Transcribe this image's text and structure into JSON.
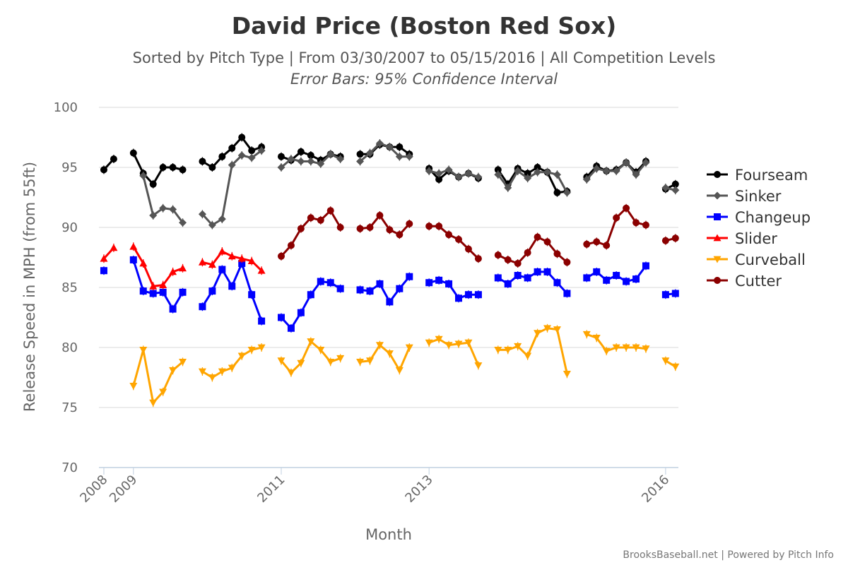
{
  "chart_data": {
    "type": "line",
    "title": "David Price (Boston Red Sox)",
    "subtitle": "Sorted by Pitch Type | From 03/30/2007 to 05/15/2016 | All Competition Levels",
    "subtitle2": "Error Bars: 95% Confidence Interval",
    "xlabel": "Month",
    "ylabel": "Release Speed in MPH (from 55ft)",
    "ylim": [
      70,
      100
    ],
    "yticks": [
      70,
      75,
      80,
      85,
      90,
      95,
      100
    ],
    "xticks": [
      {
        "label": "2008",
        "x": 0
      },
      {
        "label": "2009",
        "x": 3
      },
      {
        "label": "2011",
        "x": 18
      },
      {
        "label": "2013",
        "x": 33
      },
      {
        "label": "2016",
        "x": 57
      }
    ],
    "xlim": [
      -0.5,
      58.3
    ],
    "grid": true,
    "legend_position": "right",
    "credit": "BrooksBaseball.net | Powered by Pitch Info",
    "series": [
      {
        "name": "Fourseam",
        "color": "#000000",
        "marker": "circle",
        "stroke": "#000000",
        "segments": [
          [
            [
              0,
              94.8
            ],
            [
              1,
              95.7
            ]
          ],
          [
            [
              3,
              96.2
            ],
            [
              4,
              94.5
            ],
            [
              5,
              93.6
            ],
            [
              6,
              95.0
            ],
            [
              7,
              95.0
            ],
            [
              8,
              94.8
            ]
          ],
          [
            [
              10,
              95.5
            ],
            [
              11,
              95.0
            ],
            [
              12,
              95.9
            ],
            [
              13,
              96.6
            ],
            [
              14,
              97.5
            ],
            [
              15,
              96.4
            ],
            [
              16,
              96.7
            ]
          ],
          [
            [
              18,
              95.9
            ],
            [
              19,
              95.6
            ],
            [
              20,
              96.3
            ],
            [
              21,
              96.0
            ],
            [
              22,
              95.6
            ],
            [
              23,
              96.1
            ],
            [
              24,
              95.9
            ]
          ],
          [
            [
              26,
              96.1
            ],
            [
              27,
              96.1
            ],
            [
              28,
              96.9
            ],
            [
              29,
              96.7
            ],
            [
              30,
              96.7
            ],
            [
              31,
              96.1
            ]
          ],
          [
            [
              33,
              94.9
            ],
            [
              34,
              94.0
            ],
            [
              35,
              94.7
            ],
            [
              36,
              94.2
            ],
            [
              37,
              94.5
            ],
            [
              38,
              94.1
            ]
          ],
          [
            [
              40,
              94.8
            ],
            [
              41,
              93.6
            ],
            [
              42,
              94.9
            ],
            [
              43,
              94.5
            ],
            [
              44,
              95.0
            ],
            [
              45,
              94.6
            ],
            [
              46,
              92.9
            ],
            [
              47,
              93.0
            ]
          ],
          [
            [
              49,
              94.2
            ],
            [
              50,
              95.1
            ],
            [
              51,
              94.7
            ],
            [
              52,
              94.8
            ],
            [
              53,
              95.4
            ],
            [
              54,
              94.6
            ],
            [
              55,
              95.5
            ]
          ],
          [
            [
              57,
              93.2
            ],
            [
              58,
              93.6
            ]
          ]
        ]
      },
      {
        "name": "Sinker",
        "color": "#555555",
        "marker": "diamond",
        "stroke": "#555555",
        "segments": [
          [
            [
              4,
              94.3
            ],
            [
              5,
              91.0
            ],
            [
              6,
              91.6
            ],
            [
              7,
              91.5
            ],
            [
              8,
              90.4
            ]
          ],
          [
            [
              10,
              91.1
            ],
            [
              11,
              90.2
            ],
            [
              12,
              90.7
            ],
            [
              13,
              95.2
            ],
            [
              14,
              96.0
            ],
            [
              15,
              95.8
            ],
            [
              16,
              96.4
            ]
          ],
          [
            [
              18,
              95.0
            ],
            [
              19,
              95.7
            ],
            [
              20,
              95.5
            ],
            [
              21,
              95.5
            ],
            [
              22,
              95.3
            ],
            [
              23,
              96.1
            ],
            [
              24,
              95.7
            ]
          ],
          [
            [
              26,
              95.5
            ],
            [
              27,
              96.2
            ],
            [
              28,
              97.0
            ],
            [
              29,
              96.7
            ],
            [
              30,
              95.9
            ],
            [
              31,
              95.9
            ]
          ],
          [
            [
              33,
              94.7
            ],
            [
              34,
              94.5
            ],
            [
              35,
              94.8
            ],
            [
              36,
              94.2
            ],
            [
              37,
              94.5
            ],
            [
              38,
              94.2
            ]
          ],
          [
            [
              40,
              94.4
            ],
            [
              41,
              93.3
            ],
            [
              42,
              94.7
            ],
            [
              43,
              94.1
            ],
            [
              44,
              94.6
            ],
            [
              45,
              94.6
            ],
            [
              46,
              94.4
            ],
            [
              47,
              92.9
            ]
          ],
          [
            [
              49,
              94.0
            ],
            [
              50,
              94.9
            ],
            [
              51,
              94.7
            ],
            [
              52,
              94.7
            ],
            [
              53,
              95.4
            ],
            [
              54,
              94.4
            ],
            [
              55,
              95.4
            ]
          ],
          [
            [
              57,
              93.3
            ],
            [
              58,
              93.1
            ]
          ]
        ]
      },
      {
        "name": "Changeup",
        "color": "#0000ff",
        "marker": "square",
        "stroke": "#0000ff",
        "segments": [
          [
            [
              0,
              86.4
            ]
          ],
          [
            [
              3,
              87.3
            ],
            [
              4,
              84.7
            ],
            [
              5,
              84.5
            ],
            [
              6,
              84.6
            ],
            [
              7,
              83.2
            ],
            [
              8,
              84.6
            ]
          ],
          [
            [
              10,
              83.4
            ],
            [
              11,
              84.7
            ],
            [
              12,
              86.5
            ],
            [
              13,
              85.1
            ],
            [
              14,
              87.0
            ],
            [
              15,
              84.4
            ],
            [
              16,
              82.2
            ]
          ],
          [
            [
              18,
              82.5
            ],
            [
              19,
              81.6
            ],
            [
              20,
              82.9
            ],
            [
              21,
              84.4
            ],
            [
              22,
              85.5
            ],
            [
              23,
              85.4
            ],
            [
              24,
              84.9
            ]
          ],
          [
            [
              26,
              84.8
            ],
            [
              27,
              84.7
            ],
            [
              28,
              85.3
            ],
            [
              29,
              83.8
            ],
            [
              30,
              84.9
            ],
            [
              31,
              85.9
            ]
          ],
          [
            [
              33,
              85.4
            ],
            [
              34,
              85.6
            ],
            [
              35,
              85.3
            ],
            [
              36,
              84.1
            ],
            [
              37,
              84.4
            ],
            [
              38,
              84.4
            ]
          ],
          [
            [
              40,
              85.8
            ],
            [
              41,
              85.3
            ],
            [
              42,
              86.0
            ],
            [
              43,
              85.8
            ],
            [
              44,
              86.3
            ],
            [
              45,
              86.3
            ],
            [
              46,
              85.4
            ],
            [
              47,
              84.5
            ]
          ],
          [
            [
              49,
              85.8
            ],
            [
              50,
              86.3
            ],
            [
              51,
              85.6
            ],
            [
              52,
              86.0
            ],
            [
              53,
              85.5
            ],
            [
              54,
              85.7
            ],
            [
              55,
              86.8
            ]
          ],
          [
            [
              57,
              84.4
            ],
            [
              58,
              84.5
            ]
          ]
        ]
      },
      {
        "name": "Slider",
        "color": "#ff0000",
        "marker": "triangle-up",
        "stroke": "#ff0000",
        "segments": [
          [
            [
              0,
              87.4
            ],
            [
              1,
              88.3
            ]
          ],
          [
            [
              3,
              88.4
            ],
            [
              4,
              87.0
            ],
            [
              5,
              85.1
            ],
            [
              6,
              85.2
            ],
            [
              7,
              86.3
            ],
            [
              8,
              86.6
            ]
          ],
          [
            [
              10,
              87.1
            ],
            [
              11,
              86.9
            ],
            [
              12,
              88.0
            ],
            [
              13,
              87.6
            ],
            [
              14,
              87.4
            ],
            [
              15,
              87.2
            ],
            [
              16,
              86.4
            ]
          ]
        ]
      },
      {
        "name": "Curveball",
        "color": "#ffa500",
        "marker": "triangle-down",
        "stroke": "#ffa500",
        "segments": [
          [
            [
              3,
              76.8
            ],
            [
              4,
              79.8
            ],
            [
              5,
              75.4
            ],
            [
              6,
              76.3
            ],
            [
              7,
              78.1
            ],
            [
              8,
              78.8
            ]
          ],
          [
            [
              10,
              78.0
            ],
            [
              11,
              77.5
            ],
            [
              12,
              78.0
            ],
            [
              13,
              78.3
            ],
            [
              14,
              79.3
            ],
            [
              15,
              79.8
            ],
            [
              16,
              80.0
            ]
          ],
          [
            [
              18,
              78.9
            ],
            [
              19,
              77.9
            ],
            [
              20,
              78.7
            ],
            [
              21,
              80.5
            ],
            [
              22,
              79.8
            ],
            [
              23,
              78.8
            ],
            [
              24,
              79.1
            ]
          ],
          [
            [
              26,
              78.8
            ],
            [
              27,
              78.9
            ],
            [
              28,
              80.2
            ],
            [
              29,
              79.5
            ],
            [
              30,
              78.1
            ],
            [
              31,
              80.0
            ]
          ],
          [
            [
              33,
              80.4
            ],
            [
              34,
              80.7
            ],
            [
              35,
              80.2
            ],
            [
              36,
              80.3
            ],
            [
              37,
              80.4
            ],
            [
              38,
              78.5
            ]
          ],
          [
            [
              40,
              79.8
            ],
            [
              41,
              79.8
            ],
            [
              42,
              80.1
            ],
            [
              43,
              79.3
            ],
            [
              44,
              81.2
            ],
            [
              45,
              81.6
            ],
            [
              46,
              81.5
            ],
            [
              47,
              77.8
            ]
          ],
          [
            [
              49,
              81.1
            ],
            [
              50,
              80.8
            ],
            [
              51,
              79.7
            ],
            [
              52,
              80.0
            ],
            [
              53,
              80.0
            ],
            [
              54,
              80.0
            ],
            [
              55,
              79.9
            ]
          ],
          [
            [
              57,
              78.9
            ],
            [
              58,
              78.4
            ]
          ]
        ]
      },
      {
        "name": "Cutter",
        "color": "#8b0000",
        "marker": "circle",
        "stroke": "#8b0000",
        "segments": [
          [
            [
              18,
              87.6
            ],
            [
              19,
              88.5
            ],
            [
              20,
              89.9
            ],
            [
              21,
              90.8
            ],
            [
              22,
              90.6
            ],
            [
              23,
              91.4
            ],
            [
              24,
              90.0
            ]
          ],
          [
            [
              26,
              89.9
            ],
            [
              27,
              90.0
            ],
            [
              28,
              91.0
            ],
            [
              29,
              89.8
            ],
            [
              30,
              89.4
            ],
            [
              31,
              90.3
            ]
          ],
          [
            [
              33,
              90.1
            ],
            [
              34,
              90.1
            ],
            [
              35,
              89.4
            ],
            [
              36,
              89.0
            ],
            [
              37,
              88.2
            ],
            [
              38,
              87.4
            ]
          ],
          [
            [
              40,
              87.7
            ],
            [
              41,
              87.3
            ],
            [
              42,
              87.0
            ],
            [
              43,
              87.9
            ],
            [
              44,
              89.2
            ],
            [
              45,
              88.8
            ],
            [
              46,
              87.8
            ],
            [
              47,
              87.1
            ]
          ],
          [
            [
              49,
              88.6
            ],
            [
              50,
              88.8
            ],
            [
              51,
              88.5
            ],
            [
              52,
              90.8
            ],
            [
              53,
              91.6
            ],
            [
              54,
              90.4
            ],
            [
              55,
              90.2
            ]
          ],
          [
            [
              57,
              88.9
            ],
            [
              58,
              89.1
            ]
          ]
        ]
      }
    ]
  }
}
